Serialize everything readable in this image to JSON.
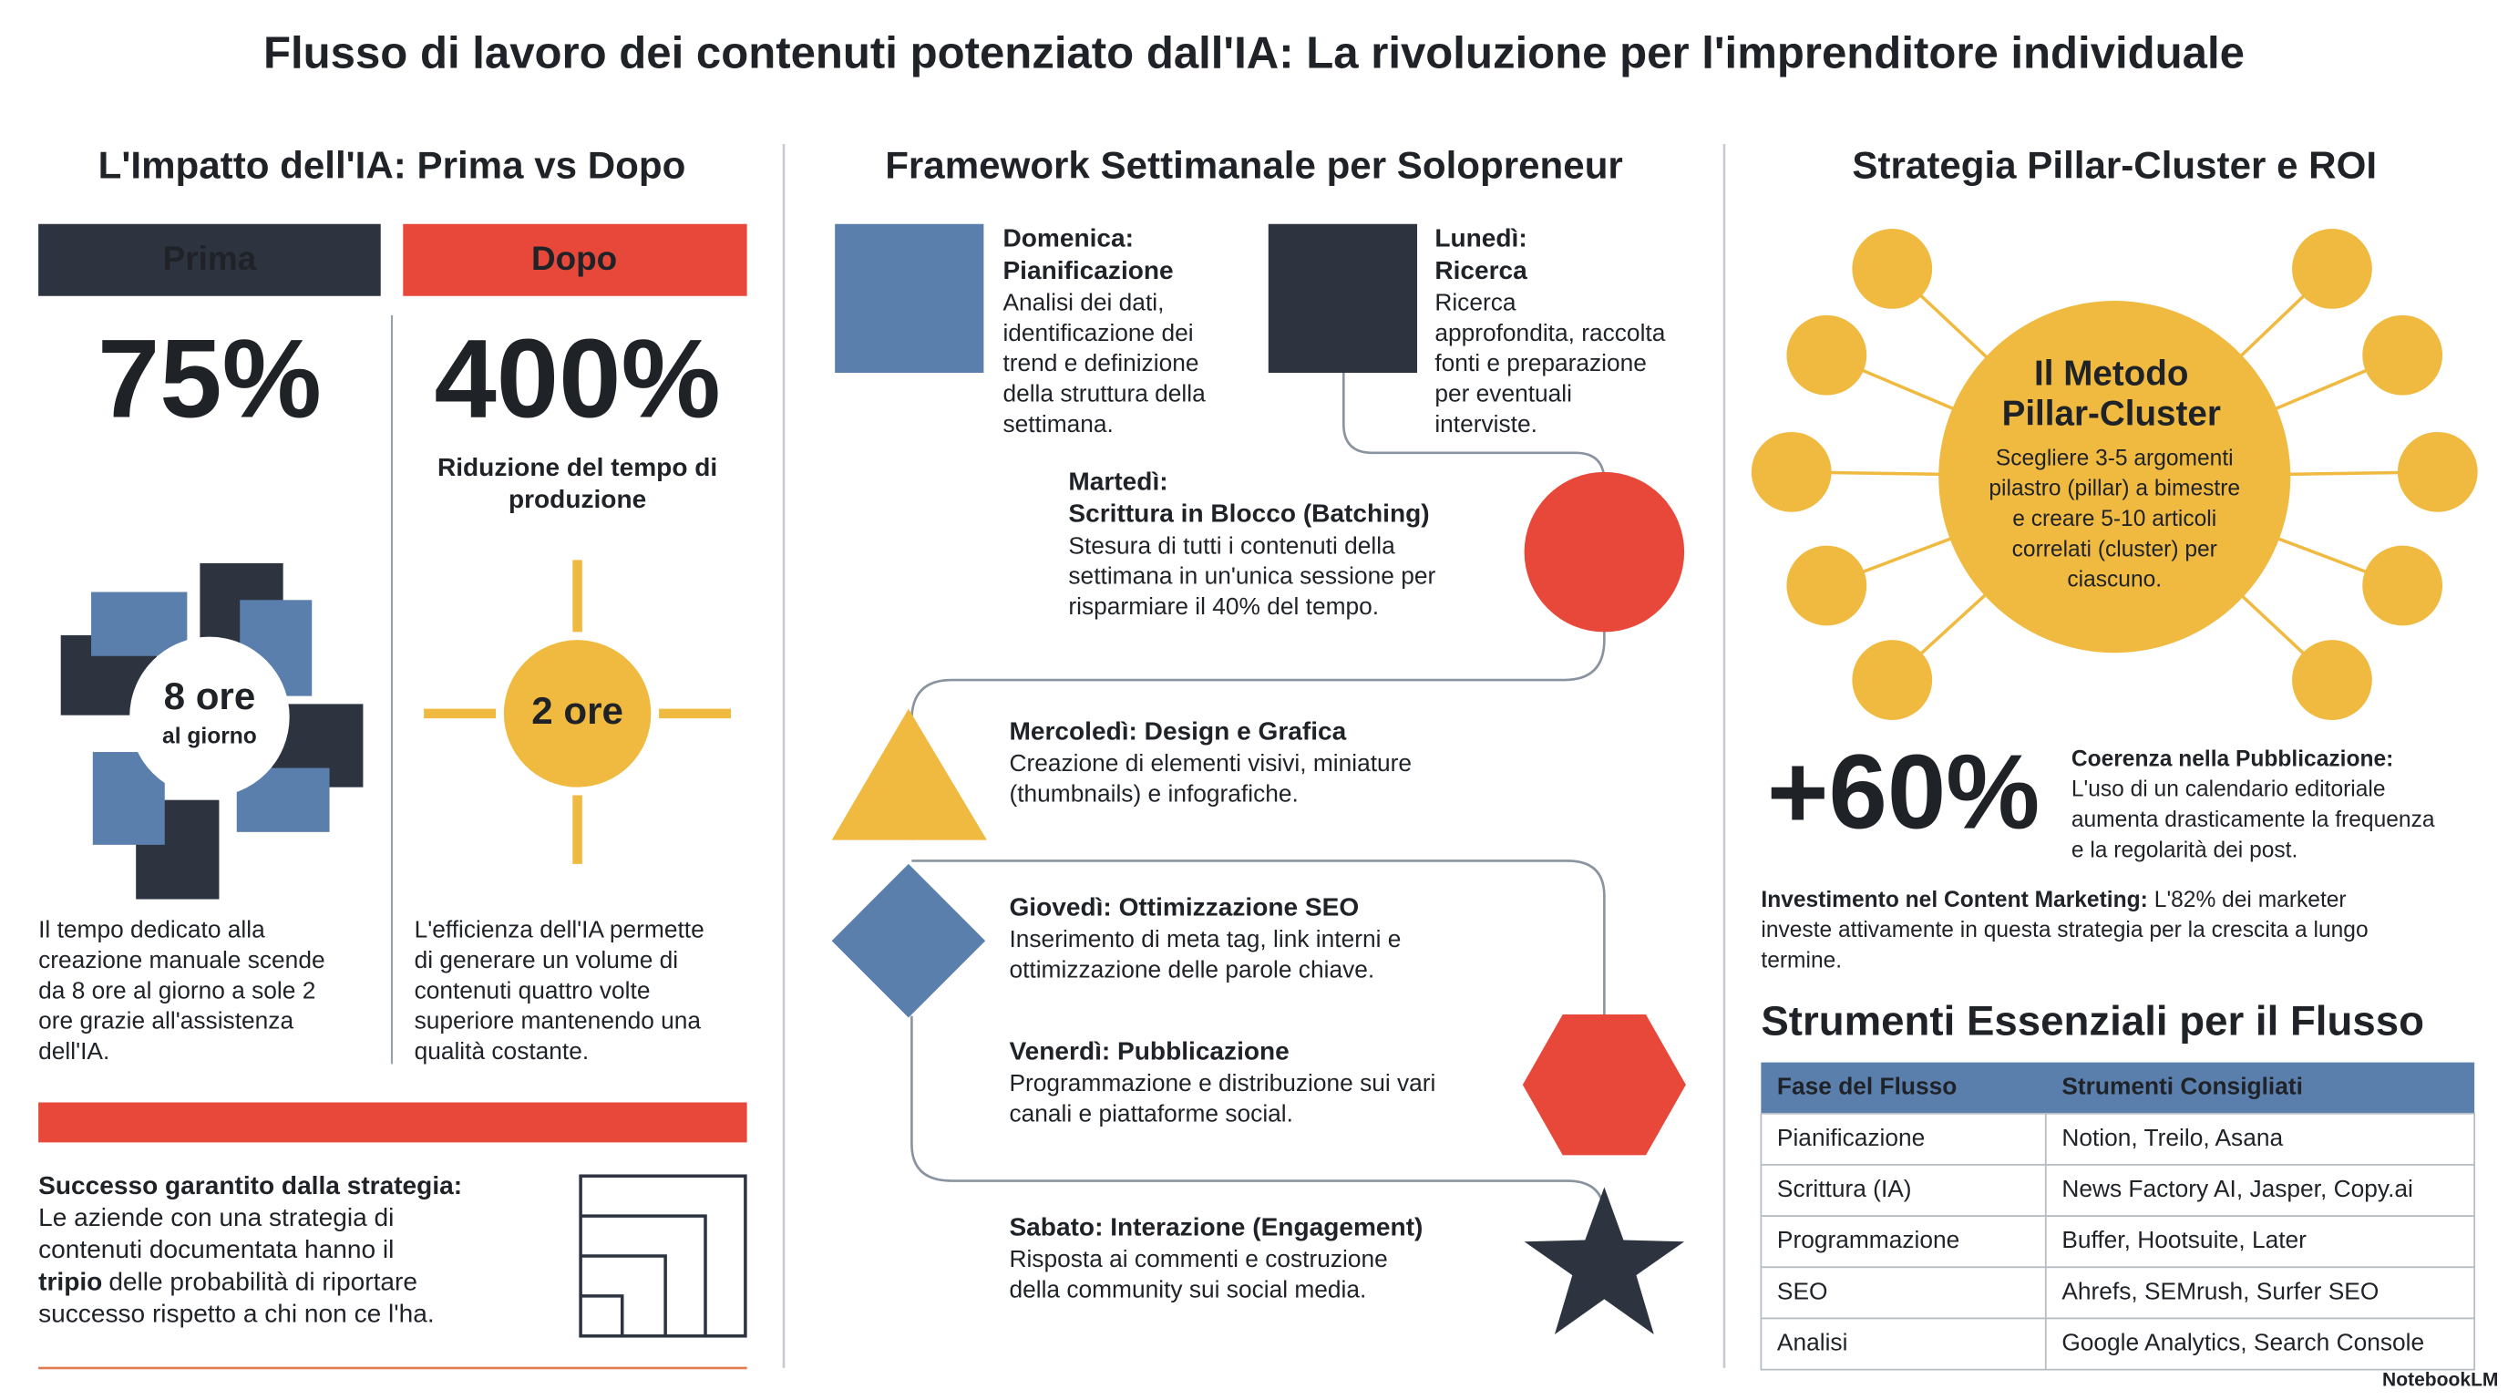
{
  "title": "Flusso di lavoro dei contenuti potenziato dall'IA: La rivoluzione per l'imprenditore individuale",
  "left": {
    "heading": "L'Impatto dell'IA: Prima vs Dopo",
    "before_label": "Prima",
    "after_label": "Dopo",
    "before_stat": "75%",
    "after_stat": "400%",
    "after_stat_caption": [
      "Riduzione del tempo di",
      "produzione"
    ],
    "before_icon_value": "8 ore",
    "before_icon_unit": "al giorno",
    "after_icon_value": "2 ore",
    "before_text": [
      "Il tempo dedicato alla",
      "creazione manuale scende",
      "da 8 ore al giorno a sole 2",
      "ore grazie all'assistenza",
      "dell'IA."
    ],
    "after_text": [
      "L'efficienza dell'IA permette",
      "di generare un volume di",
      "contenuti quattro volte",
      "superiore mantenendo una",
      "qualità costante."
    ],
    "success_title": "Successo garantito dalla strategia:",
    "success_text": [
      "Le aziende con una strategia di",
      "contenuti documentata hanno il"
    ],
    "success_emphasis": "tripio",
    "success_after": [
      "delle probabilità di riportare",
      "successo rispetto a chi non ce l'ha."
    ]
  },
  "middle": {
    "heading": "Framework Settimanale per Solopreneur",
    "days": [
      {
        "title": [
          "Domenica:",
          "Pianificazione"
        ],
        "text": [
          "Analisi dei dati,",
          "identificazione dei",
          "trend e definizione",
          "della struttura della",
          "settimana."
        ]
      },
      {
        "title": [
          "Lunedì:",
          "Ricerca"
        ],
        "text": [
          "Ricerca",
          "approfondita, raccolta",
          "fonti e preparazione",
          "per eventuali",
          "interviste."
        ]
      },
      {
        "title": [
          "Martedì:",
          "Scrittura in Blocco (Batching)"
        ],
        "text": [
          "Stesura di tutti i contenuti della",
          "settimana in un'unica sessione per",
          "risparmiare il 40% del tempo."
        ]
      },
      {
        "title": [
          "Mercoledì: Design e Grafica"
        ],
        "text": [
          "Creazione di elementi visivi, miniature",
          "(thumbnails) e infografiche."
        ]
      },
      {
        "title": [
          "Giovedì: Ottimizzazione SEO"
        ],
        "text": [
          "Inserimento di meta tag, link interni e",
          "ottimizzazione delle parole chiave."
        ]
      },
      {
        "title": [
          "Venerdì: Pubblicazione"
        ],
        "text": [
          "Programmazione e distribuzione sui vari",
          "canali e piattaforme social."
        ]
      },
      {
        "title": [
          "Sabato: Interazione (Engagement)"
        ],
        "text": [
          "Risposta ai commenti e costruzione",
          "della community sui social media."
        ]
      }
    ]
  },
  "right": {
    "heading": "Strategia Pillar-Cluster e ROI",
    "hub_title": [
      "Il Metodo",
      "Pillar-Cluster"
    ],
    "hub_text": [
      "Scegliere 3-5 argomenti",
      "pilastro (pillar) a bimestre",
      "e creare 5-10 articoli",
      "correlati (cluster) per",
      "ciascuno."
    ],
    "stat": "+60%",
    "stat_title": "Coerenza nella Pubblicazione:",
    "stat_text": [
      "L'uso di un calendario editoriale",
      "aumenta drasticamente la frequenza",
      "e la regolarità dei post."
    ],
    "investment_title": "Investimento nel Content Marketing:",
    "investment_text": [
      "L'82% dei marketer",
      "investe attivamente in questa strategia per la crescita a lungo",
      "termine."
    ],
    "table_heading": "Strumenti Essenziali per il Flusso",
    "table": {
      "header": [
        "Fase del Flusso",
        "Strumenti Consigliati"
      ],
      "rows": [
        [
          "Pianificazione",
          "Notion, Treilo, Asana"
        ],
        [
          "Scrittura (IA)",
          "News Factory AI, Jasper, Copy.ai"
        ],
        [
          "Programmazione",
          "Buffer, Hootsuite, Later"
        ],
        [
          "SEO",
          "Ahrefs, SEMrush, Surfer SEO"
        ],
        [
          "Analisi",
          "Google Analytics, Search Console"
        ]
      ]
    }
  },
  "footer": "NotebookLM"
}
